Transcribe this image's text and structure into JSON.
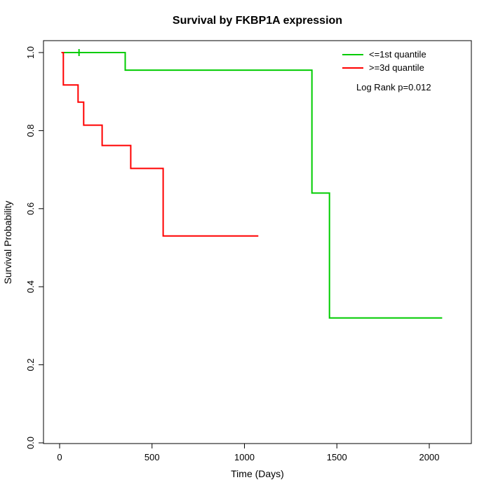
{
  "title": "Survival by FKBP1A expression",
  "xlabel": "Time (Days)",
  "ylabel": "Survival Probability",
  "legend": {
    "items": [
      {
        "label": "<=1st quantile",
        "color": "#00cc00"
      },
      {
        "label": ">=3d quantile",
        "color": "#ff0000"
      }
    ],
    "note": "Log Rank p=0.012"
  },
  "chart_data": {
    "type": "line",
    "subtype": "kaplan-meier-step",
    "title": "Survival by FKBP1A expression",
    "xlabel": "Time (Days)",
    "ylabel": "Survival Probability",
    "xlim": [
      0,
      2100
    ],
    "ylim": [
      0.0,
      1.0
    ],
    "xticks": [
      0,
      500,
      1000,
      1500,
      2000
    ],
    "yticks": [
      0.0,
      0.2,
      0.4,
      0.6,
      0.8,
      1.0
    ],
    "grid": false,
    "legend_position": "top-right",
    "annotation": "Log Rank p=0.012",
    "series": [
      {
        "name": "<=1st quantile",
        "color": "#00cc00",
        "start": {
          "x": 10,
          "y": 1.0
        },
        "steps": [
          [
            355,
            0.955
          ],
          [
            1365,
            0.64
          ],
          [
            1460,
            0.32
          ]
        ],
        "end_x": 2070,
        "censor_x": [
          105
        ]
      },
      {
        "name": ">=3d quantile",
        "color": "#ff0000",
        "start": {
          "x": 10,
          "y": 1.0
        },
        "steps": [
          [
            20,
            0.917
          ],
          [
            100,
            0.873
          ],
          [
            130,
            0.814
          ],
          [
            230,
            0.762
          ],
          [
            385,
            0.703
          ],
          [
            560,
            0.53
          ]
        ],
        "end_x": 1075,
        "censor_x": []
      }
    ]
  }
}
